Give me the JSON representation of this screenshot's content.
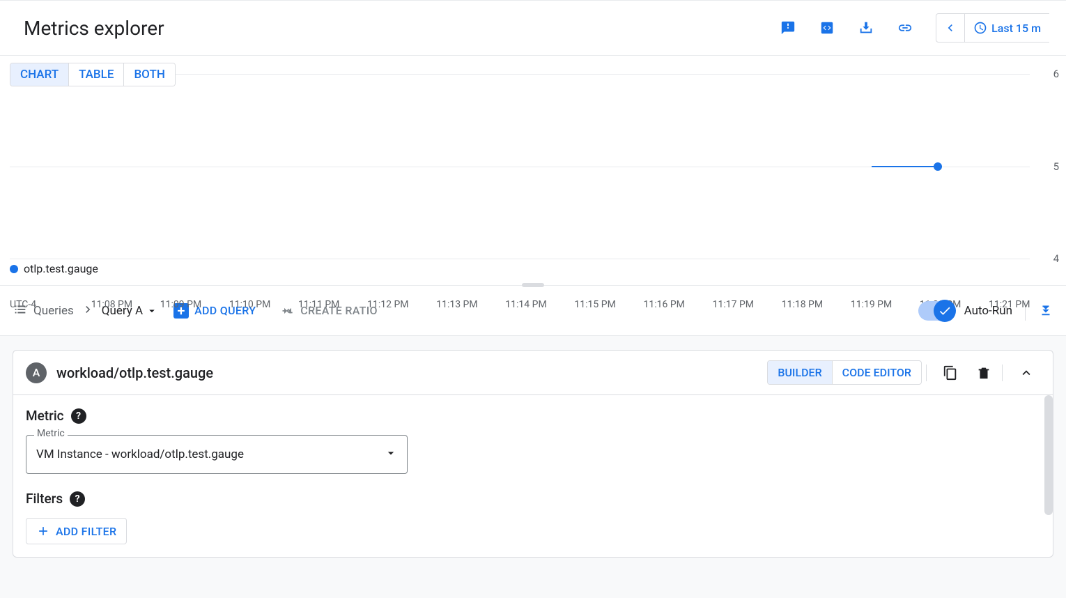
{
  "header": {
    "title": "Metrics explorer",
    "time_range_label": "Last 15 m"
  },
  "view_tabs": {
    "items": [
      "CHART",
      "TABLE",
      "BOTH"
    ],
    "active": 0
  },
  "chart": {
    "type": "line",
    "timezone": "UTC-4",
    "y_ticks": [
      4,
      5,
      6
    ],
    "ylim": [
      4,
      6
    ],
    "x_labels": [
      "11:08 PM",
      "11:09 PM",
      "11:10 PM",
      "11:11 PM",
      "11:12 PM",
      "11:13 PM",
      "11:14 PM",
      "11:15 PM",
      "11:16 PM",
      "11:17 PM",
      "11:18 PM",
      "11:19 PM",
      "11:20 PM",
      "11:21 PM"
    ],
    "series": {
      "label": "otlp.test.gauge",
      "color": "#1a73e8",
      "line_width": 2,
      "segment": {
        "x_start_pct": 84.5,
        "x_end_pct": 91.0,
        "y_value": 5
      },
      "marker": {
        "x_pct": 91.0,
        "y_value": 5,
        "size": 12
      }
    },
    "grid_color": "#e8eaed",
    "background_color": "#ffffff",
    "legend": {
      "label": "otlp.test.gauge",
      "color": "#1a73e8"
    }
  },
  "query_toolbar": {
    "queries_label": "Queries",
    "current_query": "Query A",
    "add_query_label": "ADD QUERY",
    "create_ratio_label": "CREATE RATIO",
    "auto_run_label": "Auto-Run",
    "auto_run_enabled": true
  },
  "query_card": {
    "badge": "A",
    "title": "workload/otlp.test.gauge",
    "mode_tabs": {
      "items": [
        "BUILDER",
        "CODE EDITOR"
      ],
      "active": 0
    },
    "sections": {
      "metric_label": "Metric",
      "metric_field_label": "Metric",
      "metric_value": "VM Instance - workload/otlp.test.gauge",
      "filters_label": "Filters",
      "add_filter_label": "ADD FILTER"
    }
  }
}
